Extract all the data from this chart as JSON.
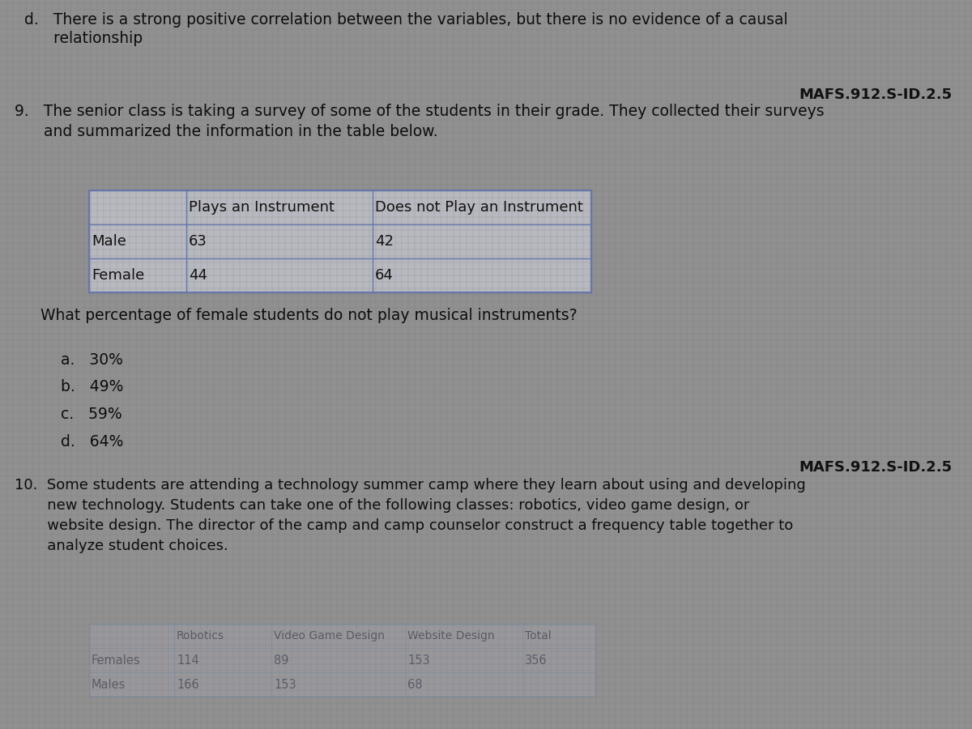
{
  "bg_color": "#909090",
  "text_color": "#111111",
  "part_d_line1": "d.   There is a strong positive correlation between the variables, but there is no evidence of a causal",
  "part_d_line2": "      relationship",
  "standard_1": "MAFS.912.S-ID.2.5",
  "q9_line1": "9.   The senior class is taking a survey of some of the students in their grade. They collected their surveys",
  "q9_line2": "      and summarized the information in the table below.",
  "table_headers": [
    "",
    "Plays an Instrument",
    "Does not Play an Instrument"
  ],
  "table_rows": [
    [
      "Male",
      "63",
      "42"
    ],
    [
      "Female",
      "44",
      "64"
    ]
  ],
  "q9_question": "What percentage of female students do not play musical instruments?",
  "q9_choices": [
    "a.   30%",
    "b.   49%",
    "c.   59%",
    "d.   64%"
  ],
  "standard_2": "MAFS.912.S-ID.2.5",
  "q10_line1": "10.  Some students are attending a technology summer camp where they learn about using and developing",
  "q10_line2": "       new technology. Students can take one of the following classes: robotics, video game design, or",
  "q10_line3": "       website design. The director of the camp and camp counselor construct a frequency table together to",
  "q10_line4": "       analyze student choices.",
  "table2_headers": [
    "",
    "Robotics",
    "Video Game Design",
    "Website Design",
    "Total"
  ],
  "table2_rows": [
    [
      "Females",
      "114",
      "89",
      "153",
      "356"
    ],
    [
      "Males",
      "166",
      "153",
      "68",
      ""
    ]
  ],
  "table_cell_color": "#b8b8c0",
  "table_border_color": "#6677aa",
  "table_header_color": "#b0b0bc"
}
